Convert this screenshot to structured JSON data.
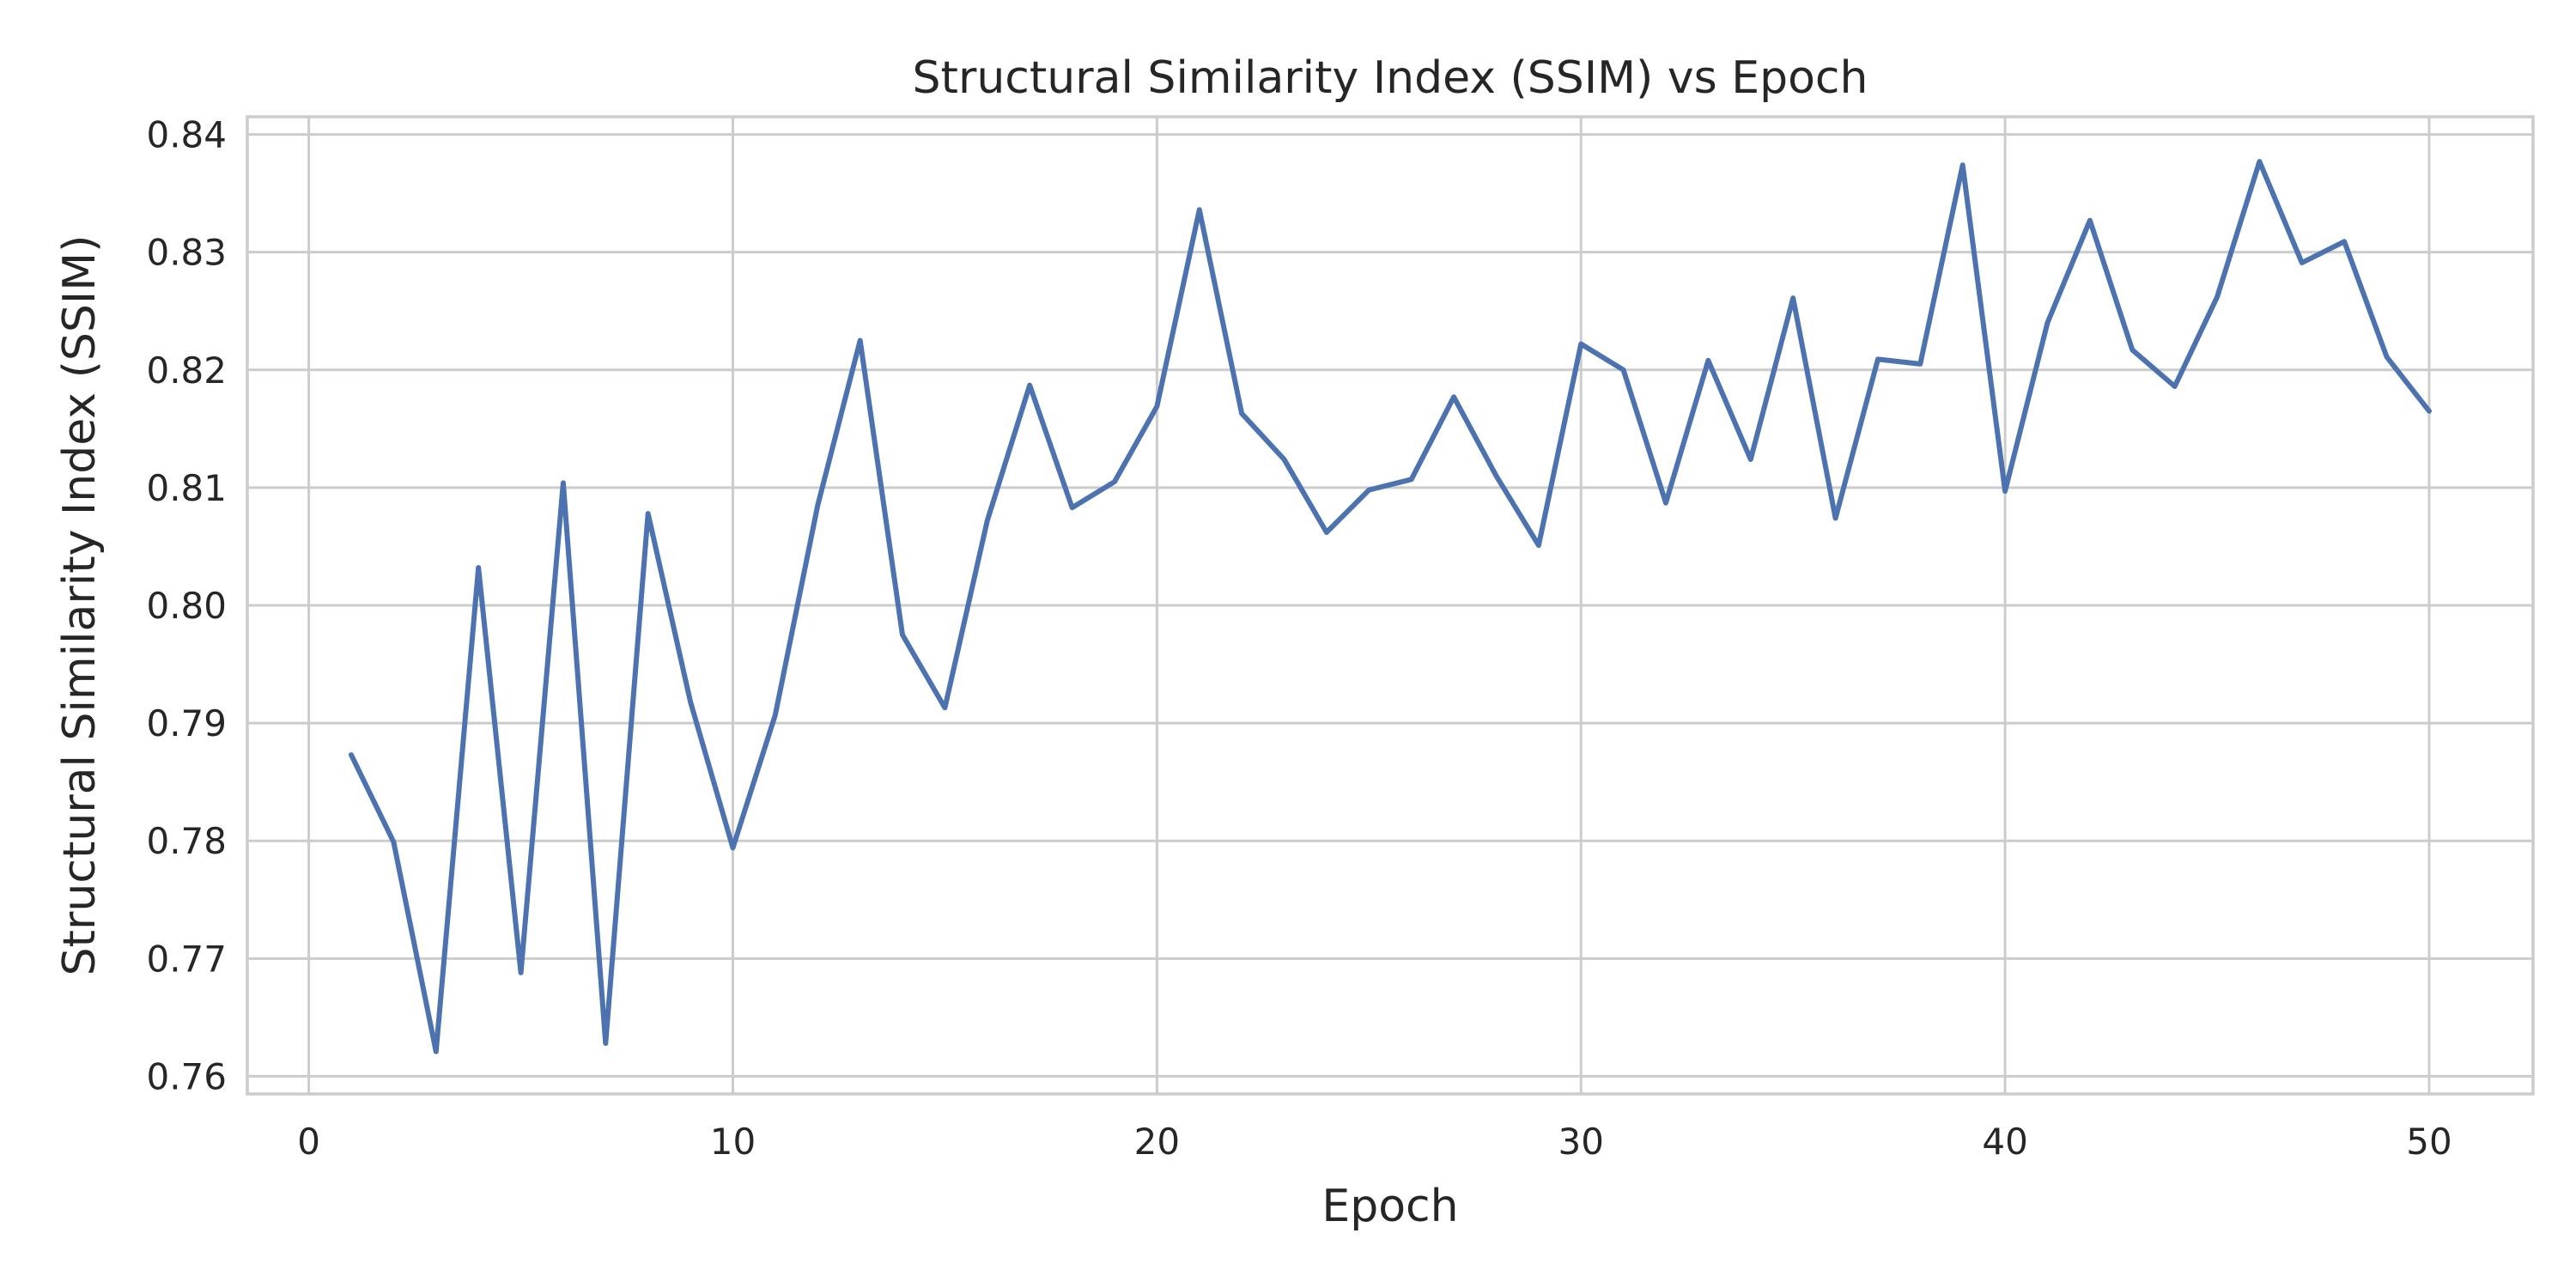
{
  "chart_data": {
    "type": "line",
    "title": "Structural Similarity Index (SSIM) vs Epoch",
    "xlabel": "Epoch",
    "ylabel": "Structural Similarity Index (SSIM)",
    "xlim": [
      -1.45,
      52.45
    ],
    "ylim": [
      0.7585,
      0.8415
    ],
    "xticks": [
      0,
      10,
      20,
      30,
      40,
      50
    ],
    "xtick_labels": [
      "0",
      "10",
      "20",
      "30",
      "40",
      "50"
    ],
    "yticks": [
      0.76,
      0.77,
      0.78,
      0.79,
      0.8,
      0.81,
      0.82,
      0.83,
      0.84
    ],
    "ytick_labels": [
      "0.76",
      "0.77",
      "0.78",
      "0.79",
      "0.80",
      "0.81",
      "0.82",
      "0.83",
      "0.84"
    ],
    "grid": true,
    "legend": "none",
    "series": [
      {
        "color": "#4c72b0",
        "x": [
          1,
          2,
          3,
          4,
          5,
          6,
          7,
          8,
          9,
          10,
          11,
          12,
          13,
          14,
          15,
          16,
          17,
          18,
          19,
          20,
          21,
          22,
          23,
          24,
          25,
          26,
          27,
          28,
          29,
          30,
          31,
          32,
          33,
          34,
          35,
          36,
          37,
          38,
          39,
          40,
          41,
          42,
          43,
          44,
          45,
          46,
          47,
          48,
          49,
          50
        ],
        "y": [
          0.7873,
          0.7799,
          0.7621,
          0.8032,
          0.7688,
          0.8104,
          0.7628,
          0.8078,
          0.7918,
          0.7794,
          0.7907,
          0.8085,
          0.8225,
          0.7975,
          0.7913,
          0.8072,
          0.8187,
          0.8083,
          0.8105,
          0.8169,
          0.8336,
          0.8163,
          0.8124,
          0.8062,
          0.8098,
          0.8107,
          0.8177,
          0.811,
          0.8051,
          0.8222,
          0.82,
          0.8087,
          0.8208,
          0.8124,
          0.8261,
          0.8074,
          0.8209,
          0.8205,
          0.8374,
          0.8097,
          0.824,
          0.8327,
          0.8217,
          0.8186,
          0.8262,
          0.8377,
          0.8291,
          0.8309,
          0.8211,
          0.8165
        ]
      }
    ]
  }
}
